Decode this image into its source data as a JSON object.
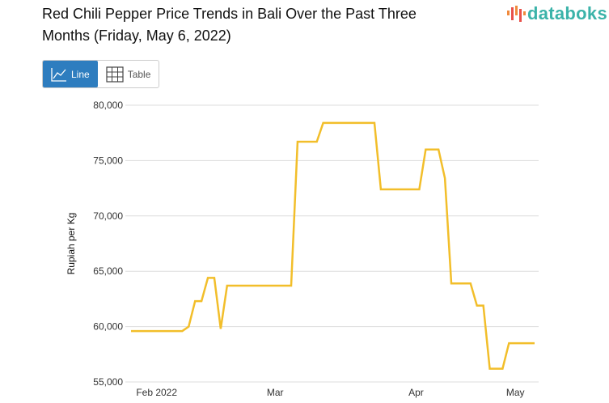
{
  "header": {
    "title": "Red Chili Pepper Price Trends in Bali Over the Past Three Months (Friday, May 6, 2022)",
    "logo": "databoks"
  },
  "toggle": {
    "line_label": "Line",
    "table_label": "Table"
  },
  "colors": {
    "line": "#f2be2a",
    "active": "#2e7dbf",
    "logo": "#3bb3a9"
  },
  "chart_data": {
    "type": "line",
    "title": "Red Chili Pepper Price Trends in Bali Over the Past Three Months (Friday, May 6, 2022)",
    "xlabel": "",
    "ylabel": "Rupiah per Kg",
    "ylim": [
      55000,
      80000
    ],
    "yticks": [
      55000,
      60000,
      65000,
      70000,
      75000,
      80000
    ],
    "ytick_labels": [
      "55,000",
      "60,000",
      "65,000",
      "70,000",
      "75,000",
      "80,000"
    ],
    "xlim": [
      0,
      63
    ],
    "xticks": [
      {
        "x": 4,
        "label": "Feb 2022"
      },
      {
        "x": 22.5,
        "label": "Mar"
      },
      {
        "x": 44.5,
        "label": "Apr"
      },
      {
        "x": 60,
        "label": "May"
      }
    ],
    "grid": true,
    "series": [
      {
        "name": "Rupiah per Kg",
        "points": [
          [
            0,
            59600
          ],
          [
            8,
            59600
          ],
          [
            9,
            60000
          ],
          [
            10,
            62300
          ],
          [
            11,
            62300
          ],
          [
            12,
            64400
          ],
          [
            13,
            64400
          ],
          [
            14,
            59800
          ],
          [
            15,
            63700
          ],
          [
            25,
            63700
          ],
          [
            26,
            76700
          ],
          [
            29,
            76700
          ],
          [
            30,
            78400
          ],
          [
            38,
            78400
          ],
          [
            39,
            72400
          ],
          [
            45,
            72400
          ],
          [
            46,
            76000
          ],
          [
            48,
            76000
          ],
          [
            49,
            73400
          ],
          [
            50,
            63900
          ],
          [
            53,
            63900
          ],
          [
            54,
            61900
          ],
          [
            55,
            61900
          ],
          [
            56,
            56200
          ],
          [
            58,
            56200
          ],
          [
            59,
            58500
          ],
          [
            63,
            58500
          ]
        ]
      }
    ]
  }
}
